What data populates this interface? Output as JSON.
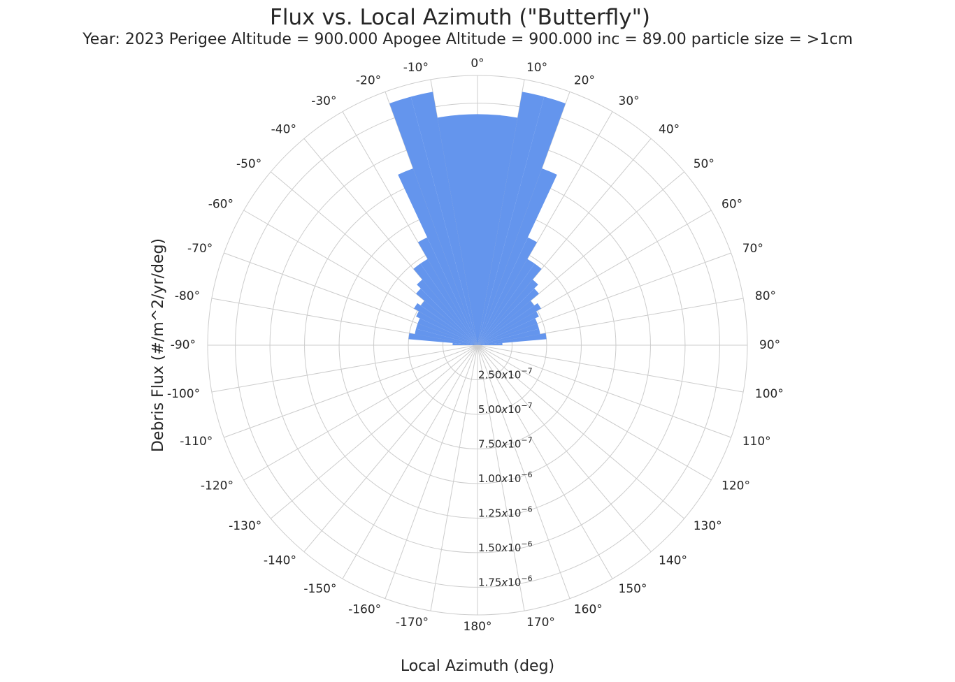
{
  "chart_data": {
    "type": "bar",
    "projection": "polar",
    "title": "Flux  vs. Local Azimuth (\"Butterfly\")",
    "subtitle": "Year: 2023  Perigee Altitude =    900.000  Apogee Altitude =   900.000  inc =   89.00  particle size = >1cm",
    "xlabel": "Local Azimuth (deg)",
    "ylabel": "Debris Flux  (#/m^2/yr/deg)",
    "theta_zero_location": "top",
    "theta_direction": "clockwise",
    "rlim": [
      0,
      1.95e-06
    ],
    "grid": true,
    "bar_color": "#6495ed",
    "angle_ticks": [
      {
        "deg": 0,
        "label": "0°"
      },
      {
        "deg": 10,
        "label": "10°"
      },
      {
        "deg": 20,
        "label": "20°"
      },
      {
        "deg": 30,
        "label": "30°"
      },
      {
        "deg": 40,
        "label": "40°"
      },
      {
        "deg": 50,
        "label": "50°"
      },
      {
        "deg": 60,
        "label": "60°"
      },
      {
        "deg": 70,
        "label": "70°"
      },
      {
        "deg": 80,
        "label": "80°"
      },
      {
        "deg": 90,
        "label": "90°"
      },
      {
        "deg": 100,
        "label": "100°"
      },
      {
        "deg": 110,
        "label": "110°"
      },
      {
        "deg": 120,
        "label": "120°"
      },
      {
        "deg": 130,
        "label": "130°"
      },
      {
        "deg": 140,
        "label": "140°"
      },
      {
        "deg": 150,
        "label": "150°"
      },
      {
        "deg": 160,
        "label": "160°"
      },
      {
        "deg": 170,
        "label": "170°"
      },
      {
        "deg": 180,
        "label": "180°"
      },
      {
        "deg": -170,
        "label": "-170°"
      },
      {
        "deg": -160,
        "label": "-160°"
      },
      {
        "deg": -150,
        "label": "-150°"
      },
      {
        "deg": -140,
        "label": "-140°"
      },
      {
        "deg": -130,
        "label": "-130°"
      },
      {
        "deg": -120,
        "label": "-120°"
      },
      {
        "deg": -110,
        "label": "-110°"
      },
      {
        "deg": -100,
        "label": "-100°"
      },
      {
        "deg": -90,
        "label": "-90°"
      },
      {
        "deg": -80,
        "label": "-80°"
      },
      {
        "deg": -70,
        "label": "-70°"
      },
      {
        "deg": -60,
        "label": "-60°"
      },
      {
        "deg": -50,
        "label": "-50°"
      },
      {
        "deg": -40,
        "label": "-40°"
      },
      {
        "deg": -30,
        "label": "-30°"
      },
      {
        "deg": -20,
        "label": "-20°"
      },
      {
        "deg": -10,
        "label": "-10°"
      }
    ],
    "radial_ticks": [
      {
        "value": 2.5e-07,
        "mantissa": "2.50",
        "exp": "−7"
      },
      {
        "value": 5e-07,
        "mantissa": "5.00",
        "exp": "−7"
      },
      {
        "value": 7.5e-07,
        "mantissa": "7.50",
        "exp": "−7"
      },
      {
        "value": 1e-06,
        "mantissa": "1.00",
        "exp": "−6"
      },
      {
        "value": 1.25e-06,
        "mantissa": "1.25",
        "exp": "−6"
      },
      {
        "value": 1.5e-06,
        "mantissa": "1.50",
        "exp": "−6"
      },
      {
        "value": 1.75e-06,
        "mantissa": "1.75",
        "exp": "−6"
      }
    ],
    "bars": [
      {
        "start": -90,
        "end": -85,
        "value": 1.8e-07
      },
      {
        "start": -85,
        "end": -80,
        "value": 5e-07
      },
      {
        "start": -80,
        "end": -75,
        "value": 4.6e-07
      },
      {
        "start": -75,
        "end": -70,
        "value": 4.6e-07
      },
      {
        "start": -70,
        "end": -65,
        "value": 4.6e-07
      },
      {
        "start": -65,
        "end": -60,
        "value": 4.9e-07
      },
      {
        "start": -60,
        "end": -55,
        "value": 5.3e-07
      },
      {
        "start": -55,
        "end": -50,
        "value": 5e-07
      },
      {
        "start": -50,
        "end": -45,
        "value": 5.8e-07
      },
      {
        "start": -45,
        "end": -40,
        "value": 6.2e-07
      },
      {
        "start": -40,
        "end": -35,
        "value": 7.2e-07
      },
      {
        "start": -35,
        "end": -30,
        "value": 7.2e-07
      },
      {
        "start": -30,
        "end": -25,
        "value": 8.6e-07
      },
      {
        "start": -25,
        "end": -20,
        "value": 1.36e-06
      },
      {
        "start": -20,
        "end": -15,
        "value": 1.86e-06
      },
      {
        "start": -15,
        "end": -10,
        "value": 1.86e-06
      },
      {
        "start": -10,
        "end": 0,
        "value": 1.67e-06
      },
      {
        "start": 0,
        "end": 10,
        "value": 1.67e-06
      },
      {
        "start": 10,
        "end": 15,
        "value": 1.86e-06
      },
      {
        "start": 15,
        "end": 20,
        "value": 1.86e-06
      },
      {
        "start": 20,
        "end": 25,
        "value": 1.36e-06
      },
      {
        "start": 25,
        "end": 30,
        "value": 8.6e-07
      },
      {
        "start": 30,
        "end": 35,
        "value": 7.2e-07
      },
      {
        "start": 35,
        "end": 40,
        "value": 7.2e-07
      },
      {
        "start": 40,
        "end": 45,
        "value": 6.2e-07
      },
      {
        "start": 45,
        "end": 50,
        "value": 5.8e-07
      },
      {
        "start": 50,
        "end": 55,
        "value": 5e-07
      },
      {
        "start": 55,
        "end": 60,
        "value": 5.3e-07
      },
      {
        "start": 60,
        "end": 65,
        "value": 4.9e-07
      },
      {
        "start": 65,
        "end": 70,
        "value": 4.6e-07
      },
      {
        "start": 70,
        "end": 75,
        "value": 4.6e-07
      },
      {
        "start": 75,
        "end": 80,
        "value": 4.6e-07
      },
      {
        "start": 80,
        "end": 85,
        "value": 5e-07
      },
      {
        "start": 85,
        "end": 90,
        "value": 1.8e-07
      }
    ]
  }
}
